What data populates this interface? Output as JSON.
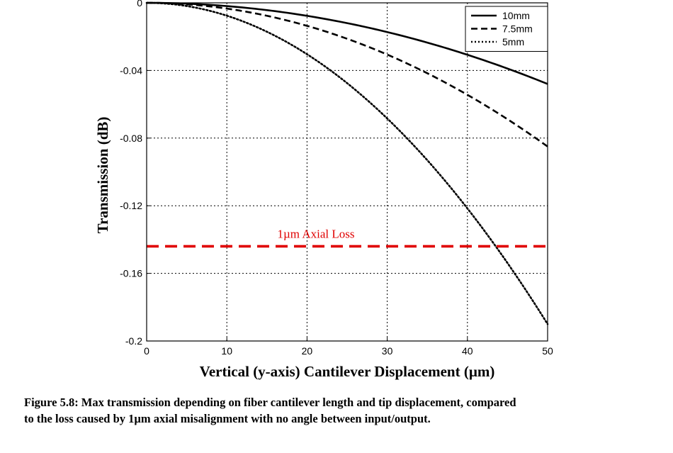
{
  "chart_data": {
    "type": "line",
    "xlabel": "Vertical (y-axis) Cantilever Displacement (µm)",
    "ylabel": "Transmission (dB)",
    "xlim": [
      0,
      50
    ],
    "ylim": [
      -0.2,
      0
    ],
    "xticks": [
      0,
      10,
      20,
      30,
      40,
      50
    ],
    "yticks": [
      0,
      -0.04,
      -0.08,
      -0.12,
      -0.16,
      -0.2
    ],
    "xtick_labels": [
      "0",
      "10",
      "20",
      "30",
      "40",
      "50"
    ],
    "ytick_labels": [
      "0",
      "-0.04",
      "-0.08",
      "-0.12",
      "-0.16",
      "-0.2"
    ],
    "grid": true,
    "legend_position": "top-right",
    "series": [
      {
        "name": "10mm",
        "style": "solid",
        "color": "#000000",
        "x": [
          0,
          5,
          10,
          15,
          20,
          25,
          30,
          35,
          40,
          45,
          50
        ],
        "y": [
          0,
          -0.0005,
          -0.0019,
          -0.0043,
          -0.0077,
          -0.012,
          -0.0173,
          -0.0235,
          -0.0307,
          -0.0389,
          -0.048
        ]
      },
      {
        "name": "7.5mm",
        "style": "dashed",
        "color": "#000000",
        "x": [
          0,
          5,
          10,
          15,
          20,
          25,
          30,
          35,
          40,
          45,
          50
        ],
        "y": [
          0,
          -0.0009,
          -0.0034,
          -0.0077,
          -0.0136,
          -0.0213,
          -0.0306,
          -0.0417,
          -0.0544,
          -0.0689,
          -0.085
        ]
      },
      {
        "name": "5mm",
        "style": "dotted",
        "color": "#000000",
        "x": [
          0,
          5,
          10,
          15,
          20,
          25,
          30,
          35,
          40,
          45,
          50
        ],
        "y": [
          0,
          -0.0019,
          -0.0076,
          -0.0171,
          -0.0304,
          -0.0475,
          -0.0684,
          -0.0931,
          -0.1216,
          -0.1539,
          -0.19
        ]
      },
      {
        "style": "dashed",
        "color": "#e00000",
        "x": [
          0,
          50
        ],
        "y": [
          -0.144,
          -0.144
        ]
      }
    ],
    "annotations": [
      {
        "text": "1µm Axial Loss",
        "x": 16.3,
        "y": -0.139,
        "color": "#e00000"
      }
    ]
  },
  "caption": {
    "line1": "Figure 5.8: Max transmission depending on fiber cantilever length and tip displacement, compared",
    "line2": "to the loss caused by 1µm axial misalignment with no angle between input/output."
  }
}
